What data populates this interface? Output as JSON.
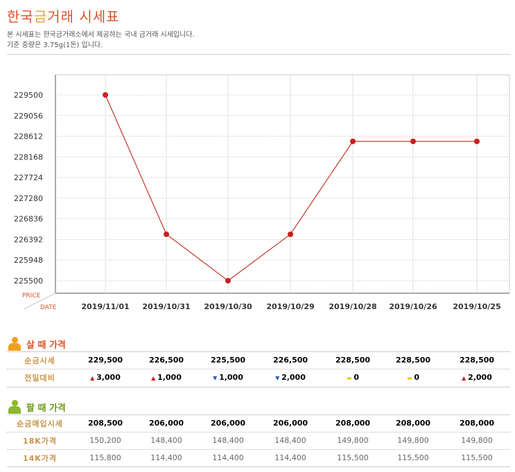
{
  "header": {
    "title_a": "한국",
    "title_b": "금",
    "title_c": "거래 시세표",
    "desc1": "본 시세표는 한국금거래소에서 제공하는 국내 금거래 시세입니다.",
    "desc2": "기준 중량은 3.75g(1돈) 입니다."
  },
  "chart_data": {
    "type": "line",
    "xlabel": "DATE",
    "ylabel": "PRICE",
    "categories": [
      "2019/11/01",
      "2019/10/31",
      "2019/10/30",
      "2019/10/29",
      "2019/10/28",
      "2019/10/26",
      "2019/10/25"
    ],
    "values": [
      229500,
      226500,
      225500,
      226500,
      228500,
      228500,
      228500
    ],
    "yticks": [
      229500,
      229056,
      228612,
      228168,
      227724,
      227280,
      226836,
      226392,
      225948,
      225500
    ],
    "ylim": [
      225500,
      229500
    ],
    "grid": true,
    "color": "#c0392b"
  },
  "buy": {
    "title": "살 때 가격",
    "rows": [
      {
        "label": "순금시세",
        "values": [
          "229,500",
          "226,500",
          "225,500",
          "226,500",
          "228,500",
          "228,500",
          "228,500"
        ]
      },
      {
        "label": "전일대비",
        "values": [
          "3,000",
          "1,000",
          "1,000",
          "2,000",
          "0",
          "0",
          "2,000"
        ],
        "dirs": [
          "up",
          "up",
          "down",
          "down",
          "flat",
          "flat",
          "up"
        ]
      }
    ]
  },
  "sell": {
    "title": "팔 때 가격",
    "rows": [
      {
        "label": "순금매입시세",
        "values": [
          "208,500",
          "206,000",
          "206,000",
          "206,000",
          "208,000",
          "208,000",
          "208,000"
        ]
      },
      {
        "label": "18K가격",
        "values": [
          "150,200",
          "148,400",
          "148,400",
          "148,400",
          "149,800",
          "149,800",
          "149,800"
        ]
      },
      {
        "label": "14K가격",
        "values": [
          "115,800",
          "114,400",
          "114,400",
          "114,400",
          "115,500",
          "115,500",
          "115,500"
        ]
      }
    ]
  }
}
